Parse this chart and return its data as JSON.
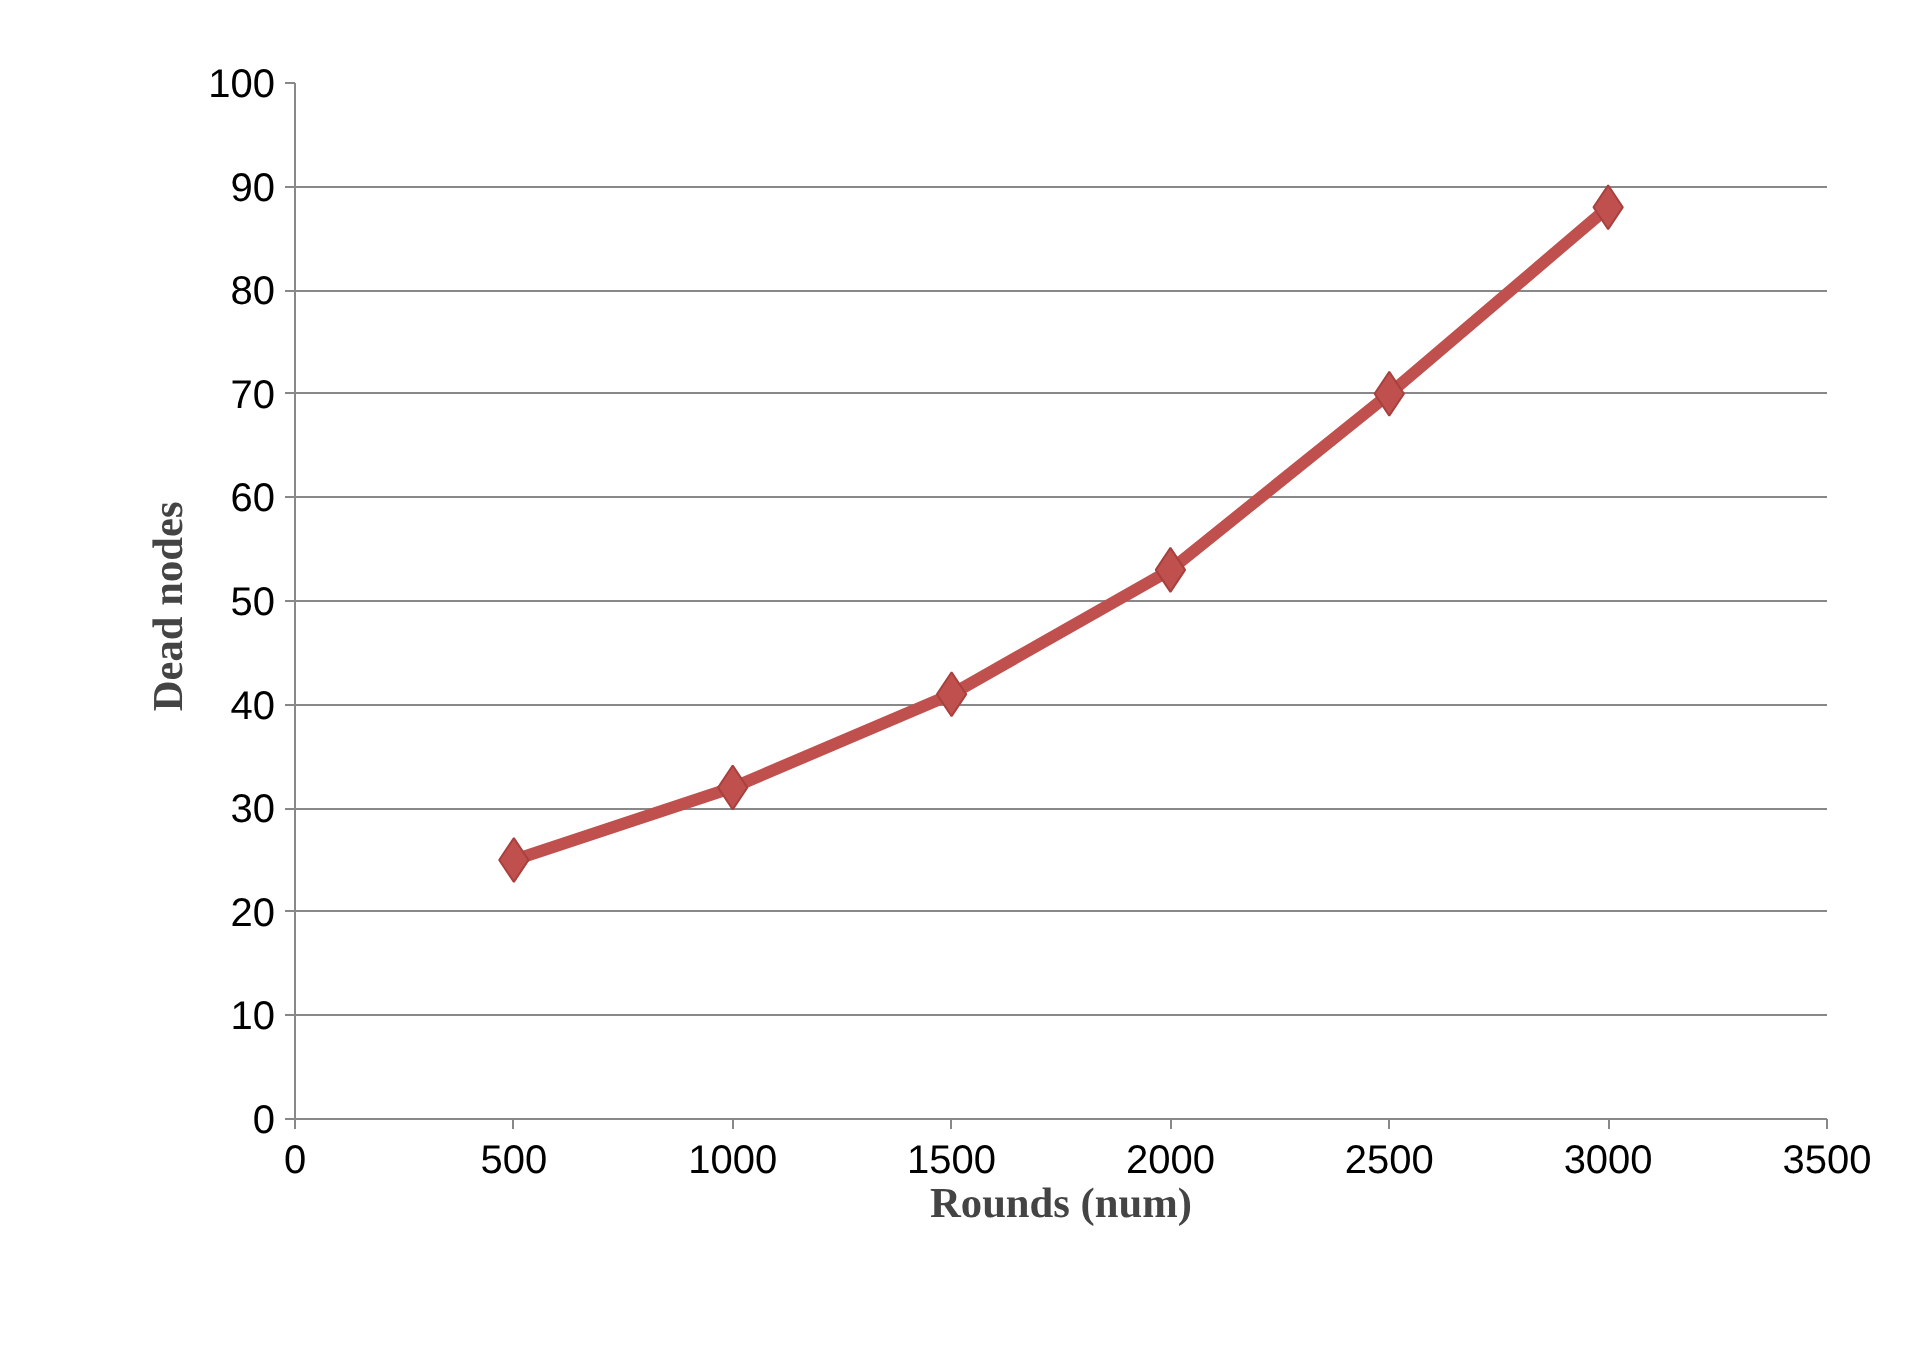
{
  "chart_data": {
    "type": "line",
    "xlabel": "Rounds (num)",
    "ylabel": "Dead  nodes",
    "x": [
      500,
      1000,
      1500,
      2000,
      2500,
      3000
    ],
    "series": [
      {
        "color": "#c0504d",
        "values": [
          25,
          32,
          41,
          53,
          70,
          88
        ]
      }
    ],
    "xlim": [
      0,
      3500
    ],
    "xticks": [
      0,
      500,
      1000,
      1500,
      2000,
      2500,
      3000,
      3500
    ],
    "ylim": [
      0,
      100
    ],
    "yticks": [
      0,
      10,
      20,
      30,
      40,
      50,
      60,
      70,
      80,
      90,
      100
    ],
    "grid": "y",
    "marker": "diamond",
    "line_style": "solid"
  }
}
